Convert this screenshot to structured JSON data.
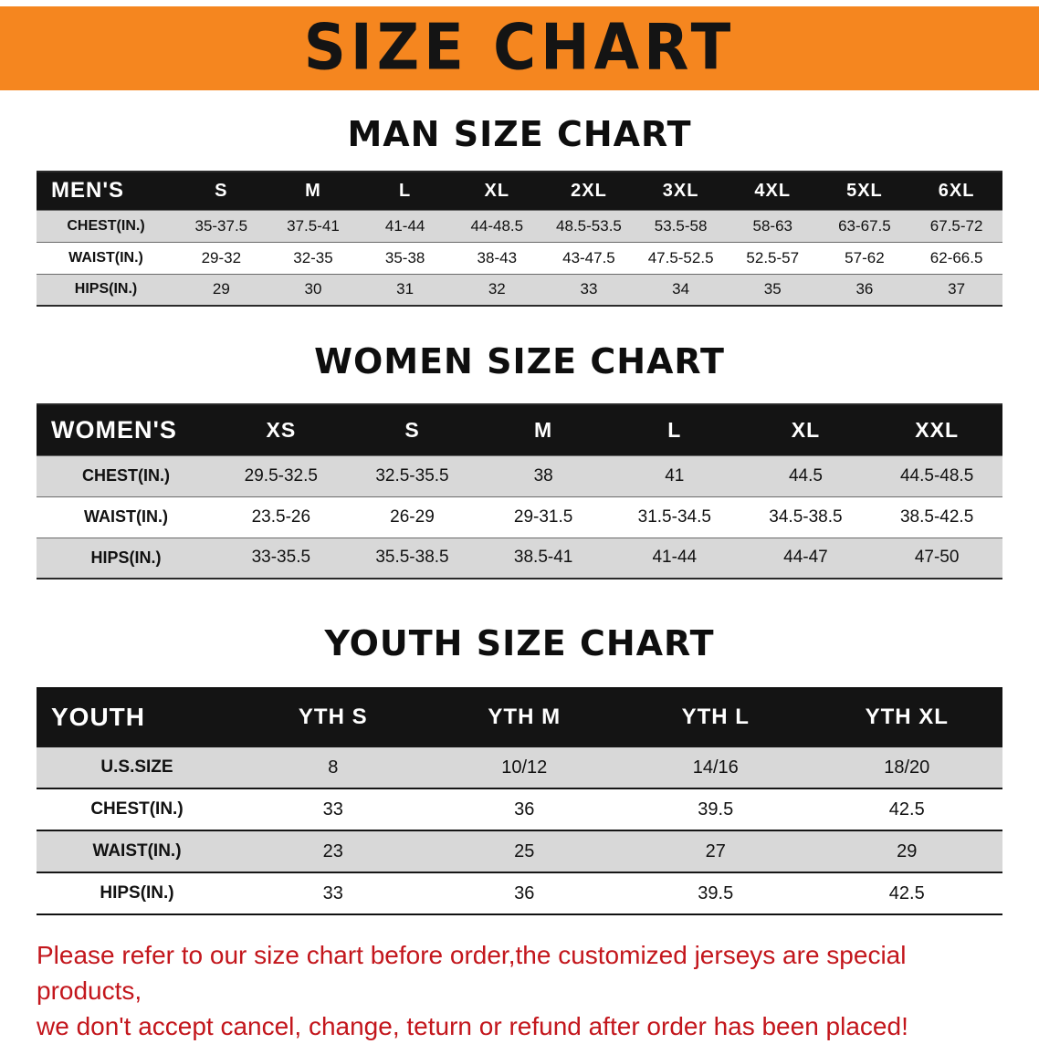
{
  "banner": {
    "title": "SIZE CHART",
    "bg_color": "#F5861F",
    "text_color": "#141414"
  },
  "sections": [
    {
      "id": "men",
      "heading": "MAN SIZE CHART",
      "table": {
        "header": [
          "MEN'S",
          "S",
          "M",
          "L",
          "XL",
          "2XL",
          "3XL",
          "4XL",
          "5XL",
          "6XL"
        ],
        "rows": [
          [
            "CHEST(IN.)",
            "35-37.5",
            "37.5-41",
            "41-44",
            "44-48.5",
            "48.5-53.5",
            "53.5-58",
            "58-63",
            "63-67.5",
            "67.5-72"
          ],
          [
            "WAIST(IN.)",
            "29-32",
            "32-35",
            "35-38",
            "38-43",
            "43-47.5",
            "47.5-52.5",
            "52.5-57",
            "57-62",
            "62-66.5"
          ],
          [
            "HIPS(IN.)",
            "29",
            "30",
            "31",
            "32",
            "33",
            "34",
            "35",
            "36",
            "37"
          ]
        ]
      }
    },
    {
      "id": "women",
      "heading": "WOMEN SIZE CHART",
      "table": {
        "header": [
          "WOMEN'S",
          "XS",
          "S",
          "M",
          "L",
          "XL",
          "XXL"
        ],
        "rows": [
          [
            "CHEST(IN.)",
            "29.5-32.5",
            "32.5-35.5",
            "38",
            "41",
            "44.5",
            "44.5-48.5"
          ],
          [
            "WAIST(IN.)",
            "23.5-26",
            "26-29",
            "29-31.5",
            "31.5-34.5",
            "34.5-38.5",
            "38.5-42.5"
          ],
          [
            "HIPS(IN.)",
            "33-35.5",
            "35.5-38.5",
            "38.5-41",
            "41-44",
            "44-47",
            "47-50"
          ]
        ]
      }
    },
    {
      "id": "youth",
      "heading": "YOUTH SIZE CHART",
      "table": {
        "header": [
          "YOUTH",
          "YTH S",
          "YTH M",
          "YTH L",
          "YTH XL"
        ],
        "rows": [
          [
            "U.S.SIZE",
            "8",
            "10/12",
            "14/16",
            "18/20"
          ],
          [
            "CHEST(IN.)",
            "33",
            "36",
            "39.5",
            "42.5"
          ],
          [
            "WAIST(IN.)",
            "23",
            "25",
            "27",
            "29"
          ],
          [
            "HIPS(IN.)",
            "33",
            "36",
            "39.5",
            "42.5"
          ]
        ]
      }
    }
  ],
  "disclaimer": {
    "color": "#C3161C",
    "line1": "Please refer to our size chart before order,the customized jerseys are special products,",
    "line2": "we don't accept cancel, change, teturn or refund after order has been placed!"
  },
  "colors": {
    "row_alt": "#D8D8D8",
    "table_header_bg": "#141414",
    "table_header_text": "#FFFFFF"
  }
}
